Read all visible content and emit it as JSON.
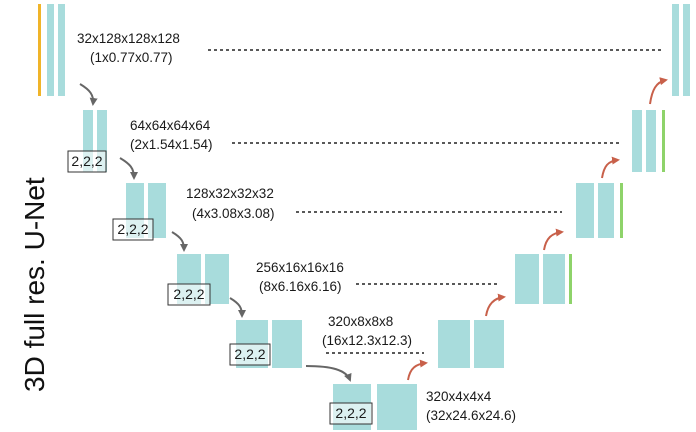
{
  "title": "3D full res. U-Net",
  "colors": {
    "block": "#a8dcdc",
    "input_bar": "#f0b429",
    "output_bar": "#8ed36a",
    "down_arrow": "#666666",
    "up_arrow": "#c8604a",
    "skip_line": "#222222"
  },
  "levels": [
    {
      "shape": "32x128x128x128",
      "spacing": "(1x0.77x0.77)"
    },
    {
      "shape": "64x64x64x64",
      "spacing": "(2x1.54x1.54)",
      "stride": "2,2,2"
    },
    {
      "shape": "128x32x32x32",
      "spacing": "(4x3.08x3.08)",
      "stride": "2,2,2"
    },
    {
      "shape": "256x16x16x16",
      "spacing": "(8x6.16x6.16)",
      "stride": "2,2,2"
    },
    {
      "shape": "320x8x8x8",
      "spacing": "(16x12.3x12.3)",
      "stride": "2,2,2"
    },
    {
      "shape": "320x4x4x4",
      "spacing": "(32x24.6x24.6)",
      "stride": "2,2,2"
    }
  ]
}
